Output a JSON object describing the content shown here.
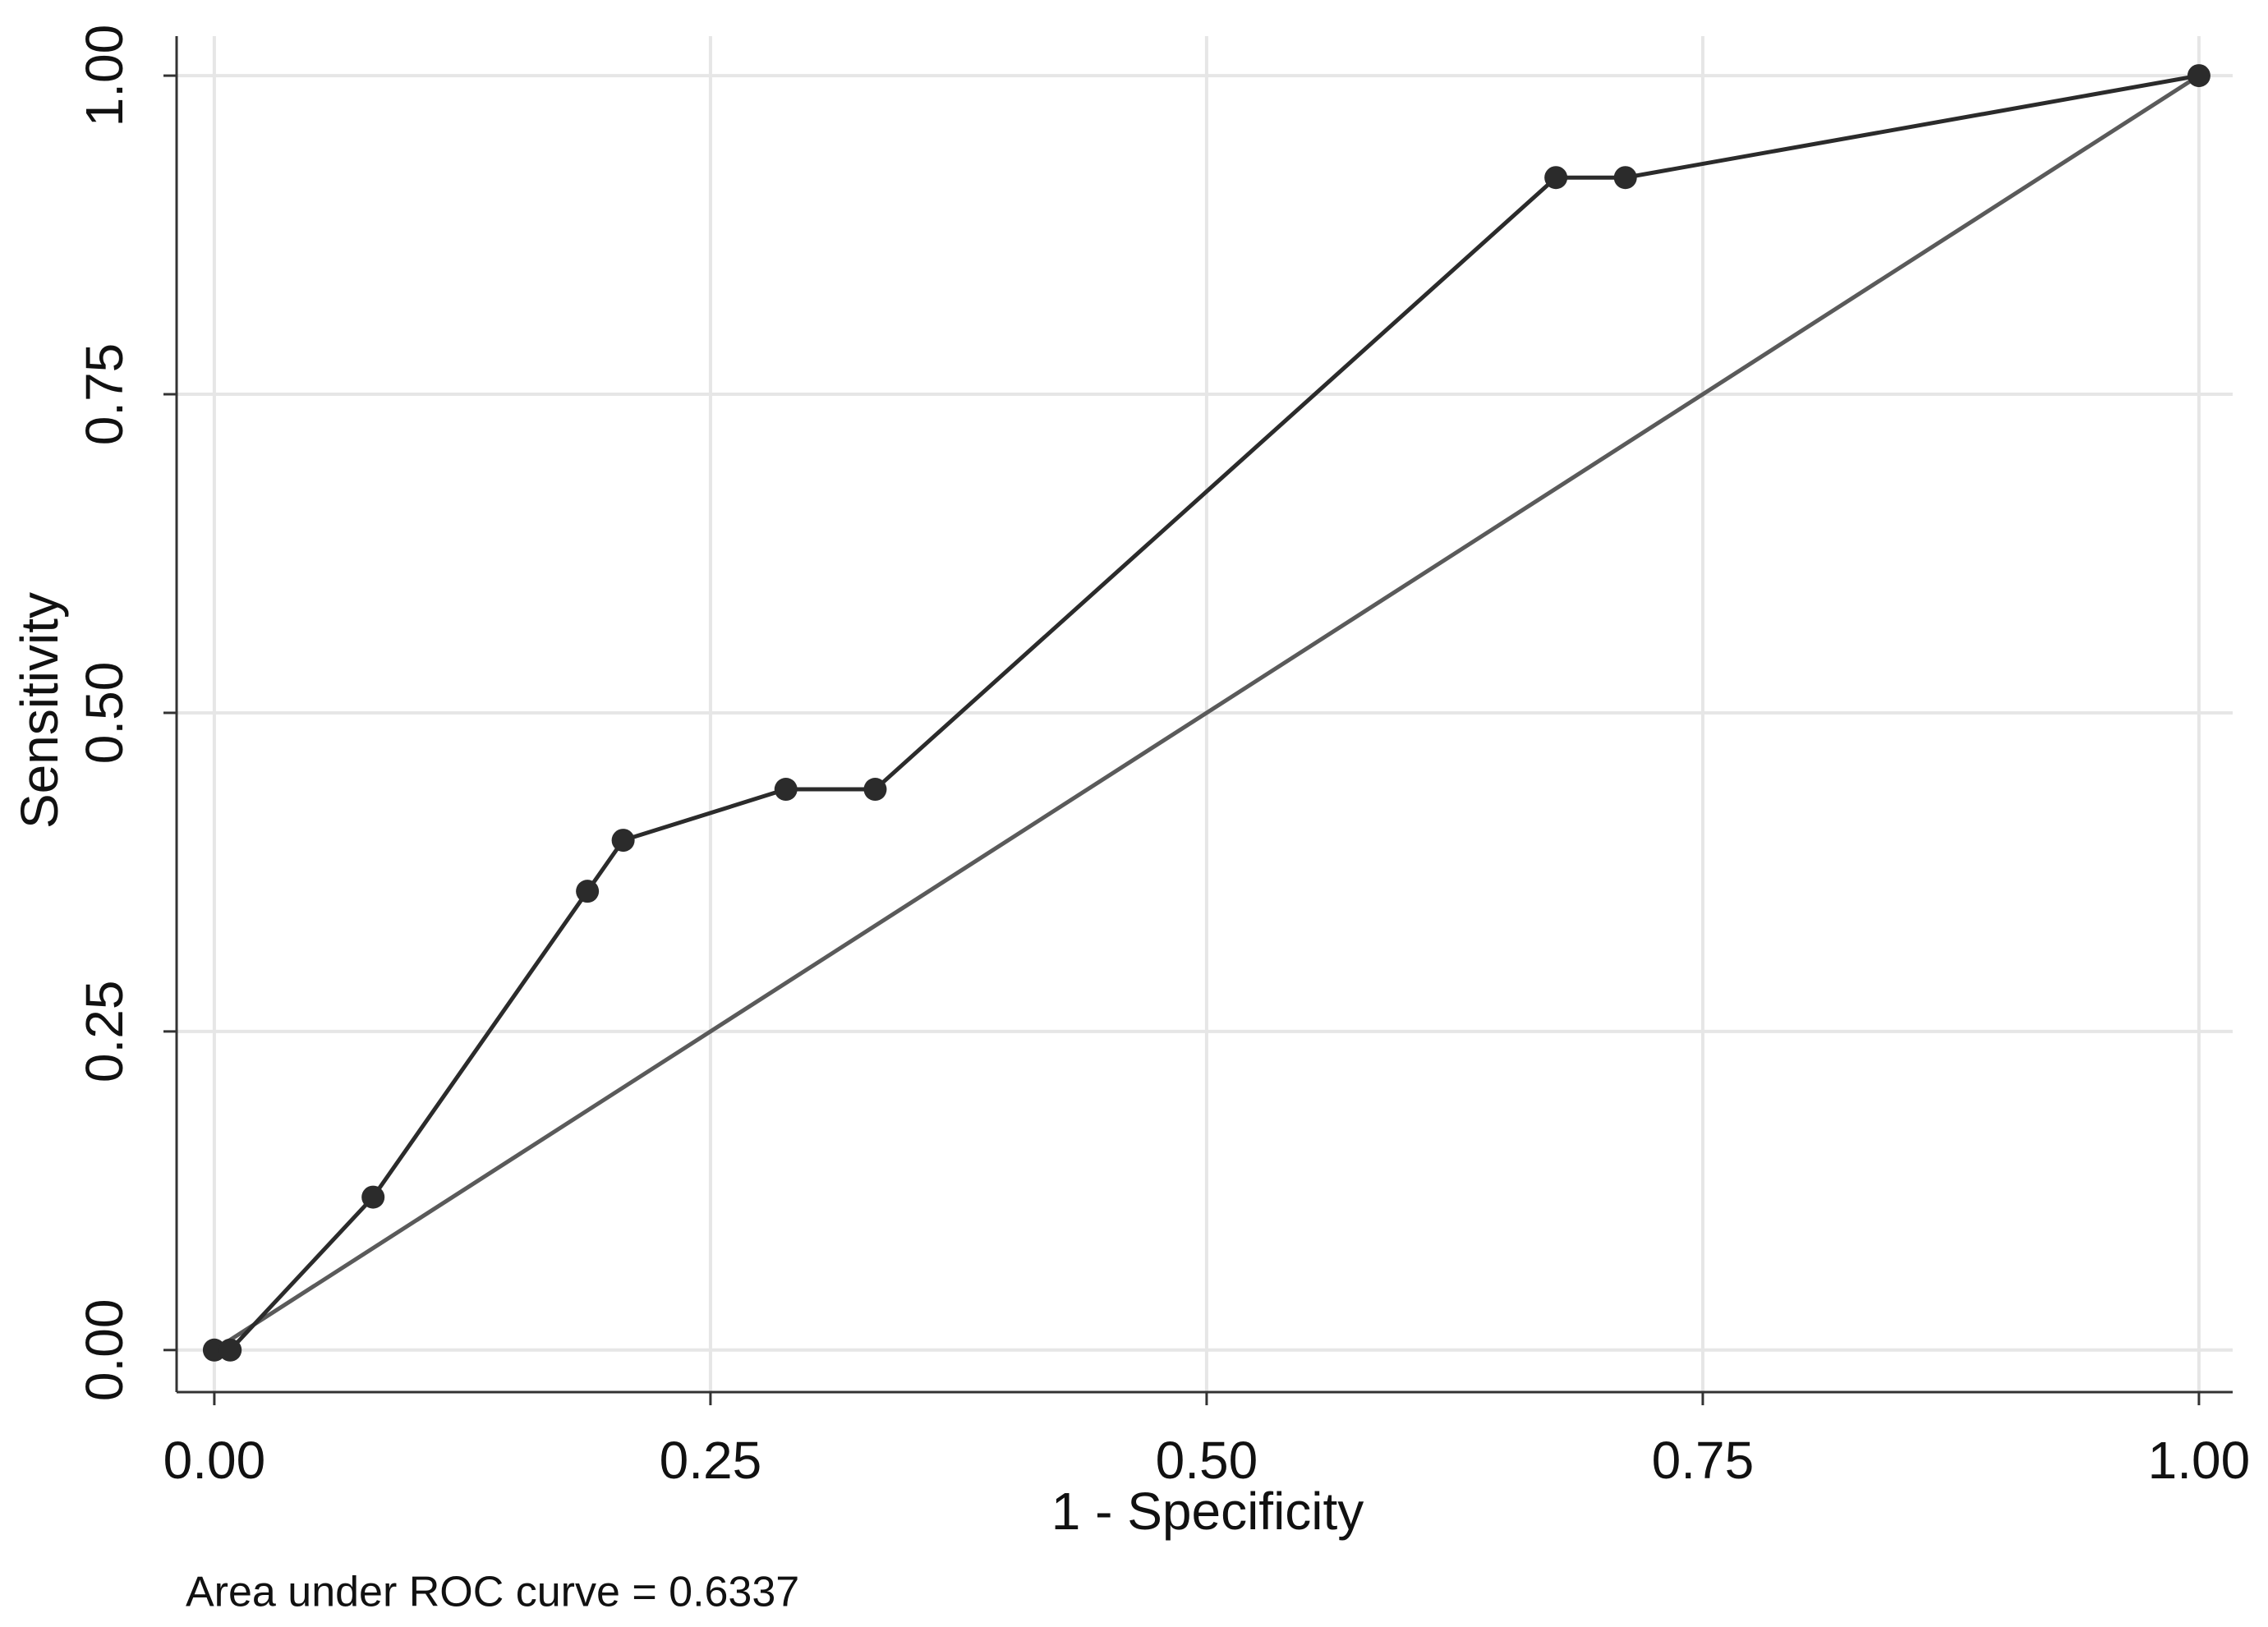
{
  "chart_data": {
    "type": "line",
    "xlabel": "1 - Specificity",
    "ylabel": "Sensitivity",
    "annotation": "Area under ROC curve = 0.6337",
    "xlim": [
      -0.019,
      1.017
    ],
    "ylim": [
      -0.033,
      1.031
    ],
    "xticks": [
      {
        "value": 0,
        "label": "0.00"
      },
      {
        "value": 0.25,
        "label": "0.25"
      },
      {
        "value": 0.5,
        "label": "0.50"
      },
      {
        "value": 0.75,
        "label": "0.75"
      },
      {
        "value": 1,
        "label": "1.00"
      }
    ],
    "yticks": [
      {
        "value": 0,
        "label": "0.00"
      },
      {
        "value": 0.25,
        "label": "0.25"
      },
      {
        "value": 0.5,
        "label": "0.50"
      },
      {
        "value": 0.75,
        "label": "0.75"
      },
      {
        "value": 1,
        "label": "1.00"
      }
    ],
    "grid": true,
    "series": [
      {
        "color": "#2b2b2b",
        "markers": true,
        "x": [
          0,
          0.008,
          0.08,
          0.188,
          0.206,
          0.288,
          0.333,
          0.676,
          0.711,
          1
        ],
        "values": [
          0,
          0,
          0.12,
          0.36,
          0.4,
          0.44,
          0.44,
          0.92,
          0.92,
          1
        ]
      },
      {
        "color": "#5a5a5a",
        "markers": false,
        "x": [
          0,
          1
        ],
        "values": [
          0,
          1
        ]
      }
    ]
  }
}
